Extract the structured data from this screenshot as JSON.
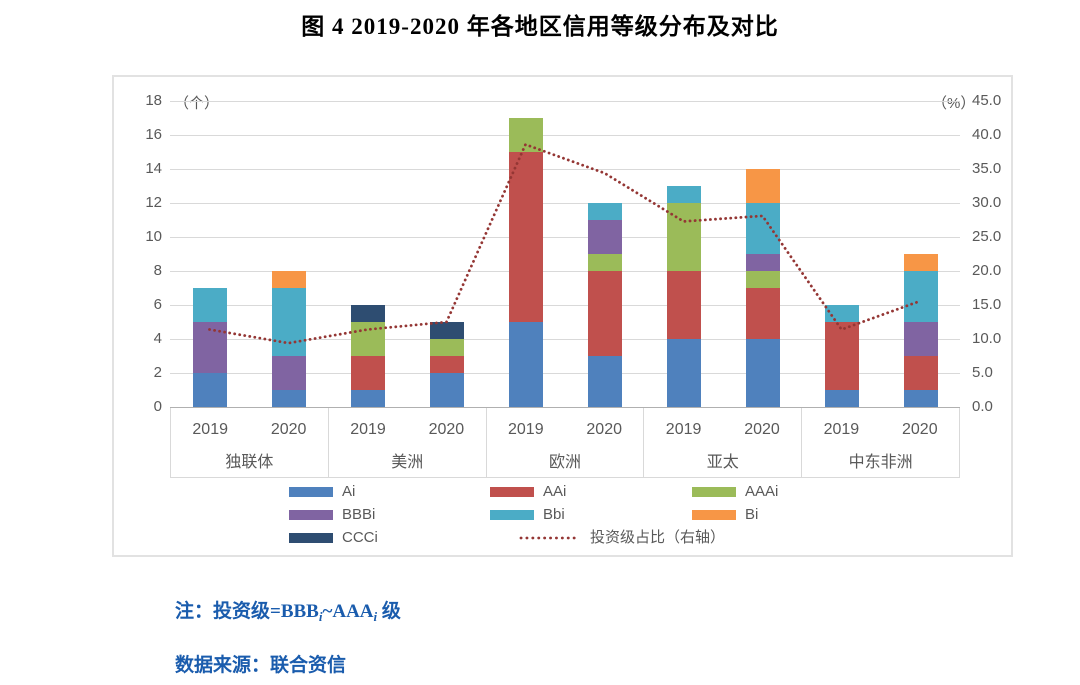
{
  "title": "图 4  2019-2020 年各地区信用等级分布及对比",
  "chart_data": {
    "type": "bar",
    "subtype": "stacked-columns-with-dotted-line",
    "grid": true,
    "legend_position": "bottom",
    "groups": [
      "独联体",
      "美洲",
      "欧洲",
      "亚太",
      "中东非洲"
    ],
    "years": [
      "2019",
      "2020"
    ],
    "categories": [
      "独联体 2019",
      "独联体 2020",
      "美洲 2019",
      "美洲 2020",
      "欧洲 2019",
      "欧洲 2020",
      "亚太 2019",
      "亚太 2020",
      "中东非洲 2019",
      "中东非洲 2020"
    ],
    "left_axis": {
      "unit": "（个）",
      "min": 0,
      "max": 18,
      "step": 2,
      "ticks": [
        "0",
        "2",
        "4",
        "6",
        "8",
        "10",
        "12",
        "14",
        "16",
        "18"
      ]
    },
    "right_axis": {
      "unit": "（%）",
      "min": 0,
      "max": 45,
      "step": 5,
      "ticks": [
        "0.0",
        "5.0",
        "10.0",
        "15.0",
        "20.0",
        "25.0",
        "30.0",
        "35.0",
        "40.0",
        "45.0"
      ]
    },
    "series": [
      {
        "name": "Ai",
        "color": "#4f81bd",
        "values": [
          2,
          1,
          1,
          2,
          5,
          3,
          4,
          4,
          1,
          1
        ]
      },
      {
        "name": "AAi",
        "color": "#c0504d",
        "values": [
          0,
          0,
          2,
          1,
          10,
          5,
          4,
          3,
          4,
          2
        ]
      },
      {
        "name": "AAAi",
        "color": "#9bbb59",
        "values": [
          0,
          0,
          2,
          1,
          2,
          1,
          4,
          1,
          0,
          0
        ]
      },
      {
        "name": "BBBi",
        "color": "#8064a2",
        "values": [
          3,
          2,
          0,
          0,
          0,
          2,
          0,
          1,
          0,
          2
        ]
      },
      {
        "name": "Bbi",
        "color": "#4bacc6",
        "values": [
          2,
          4,
          0,
          0,
          0,
          1,
          1,
          3,
          1,
          3
        ]
      },
      {
        "name": "Bi",
        "color": "#f79646",
        "values": [
          0,
          1,
          0,
          0,
          0,
          0,
          0,
          2,
          0,
          1
        ]
      },
      {
        "name": "CCCi",
        "color": "#2e4d71",
        "values": [
          0,
          0,
          1,
          1,
          0,
          0,
          0,
          0,
          0,
          0
        ]
      }
    ],
    "bar_totals": [
      7,
      8,
      6,
      5,
      17,
      12,
      13,
      14,
      6,
      9
    ],
    "line_series": {
      "name": "投资级占比（右轴）",
      "axis": "right",
      "color": "#943634",
      "style": "dotted",
      "values": [
        11.4,
        9.4,
        11.4,
        12.5,
        38.6,
        34.4,
        27.3,
        28.1,
        11.4,
        15.6
      ]
    },
    "style_colors": {
      "gridline": "#d9d9d9",
      "axis_line": "#b0b0b0",
      "axis_text": "#595959",
      "box_border": "#e2e2e2"
    }
  },
  "notes": {
    "note1": {
      "p1": "注：投资级=BBB",
      "s1": "i",
      "p2": "~AAA",
      "s2": "i",
      "p3": " 级"
    },
    "source": "数据来源：联合资信",
    "text_color": "#1a5cad"
  }
}
